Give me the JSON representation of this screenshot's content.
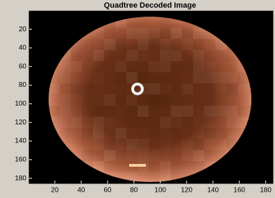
{
  "chart_data": {
    "type": "image",
    "title": "Quadtree Decoded Image",
    "xlim": [
      0.5,
      185.5
    ],
    "ylim": [
      0.5,
      185.5
    ],
    "y_reversed": true,
    "xticks": [
      20,
      40,
      60,
      80,
      100,
      120,
      140,
      160,
      180
    ],
    "yticks": [
      20,
      40,
      60,
      80,
      100,
      120,
      140,
      160,
      180
    ]
  }
}
